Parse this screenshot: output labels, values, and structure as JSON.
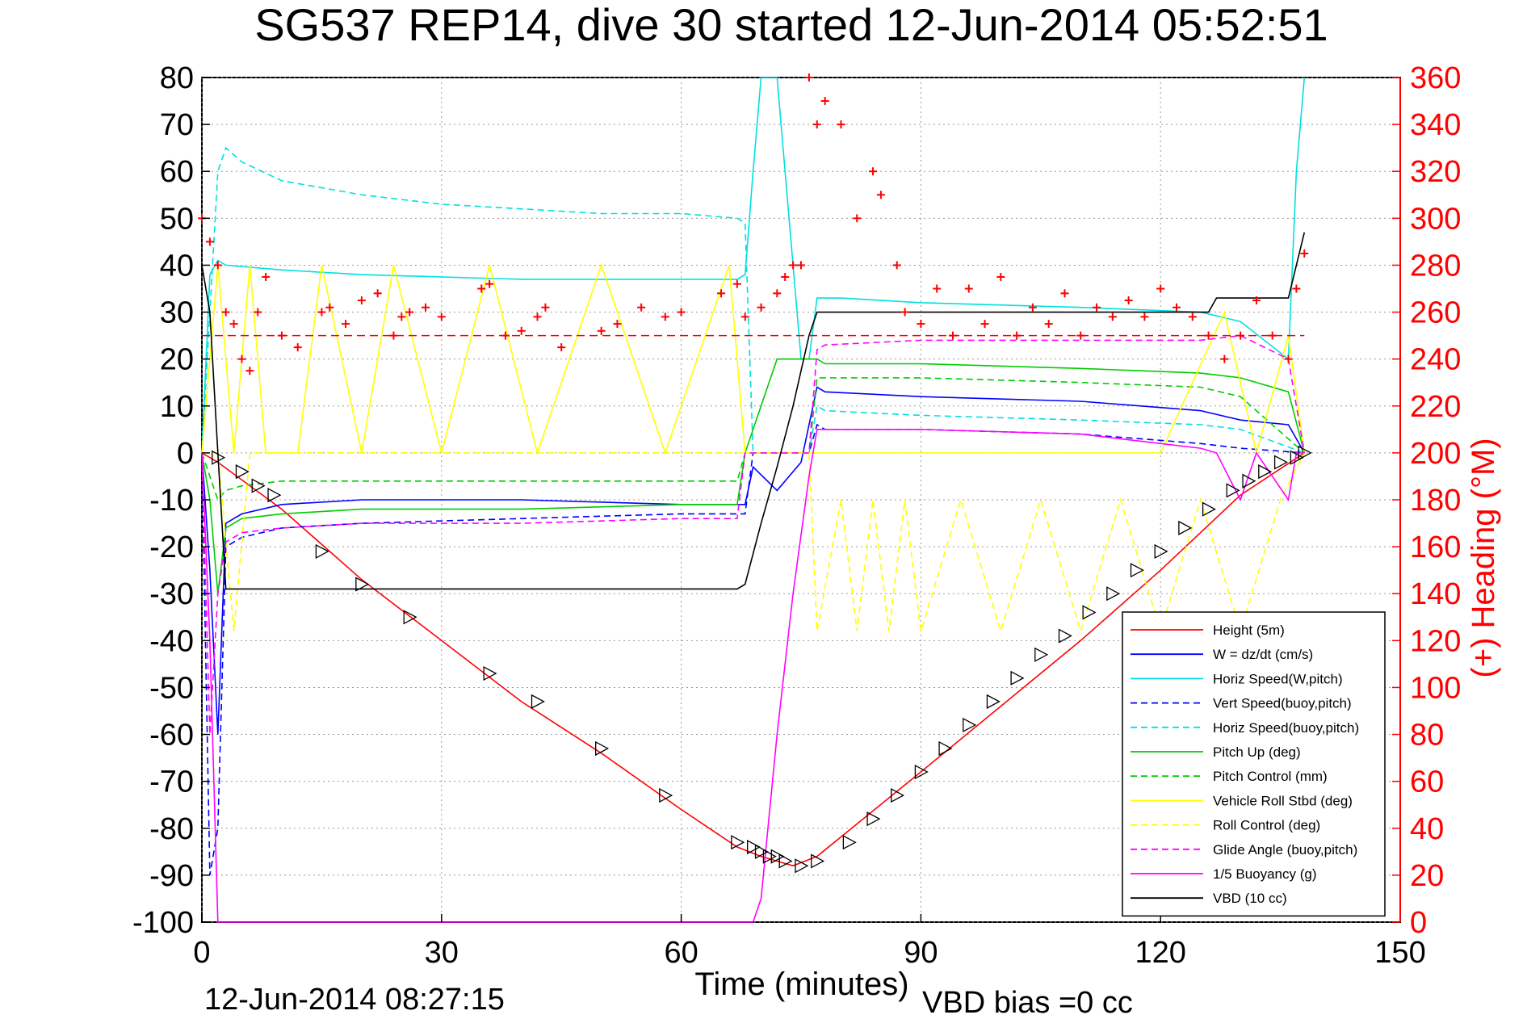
{
  "chart_data": {
    "type": "line",
    "title": "SG537 REP14, dive 30 started 12-Jun-2014 05:52:51",
    "xlabel": "Time (minutes)",
    "ylabel": "",
    "y2label": "(+) Heading (°M)",
    "footer_left": "12-Jun-2014 08:27:15",
    "footer_right": "VBD bias =0 cc",
    "xlim": [
      0,
      150
    ],
    "ylim": [
      -100,
      80
    ],
    "y2lim": [
      0,
      360
    ],
    "xticks": [
      "0",
      "30",
      "60",
      "90",
      "120",
      "150"
    ],
    "yticks": [
      "80",
      "70",
      "60",
      "50",
      "40",
      "30",
      "20",
      "10",
      "0",
      "-10",
      "-20",
      "-30",
      "-40",
      "-50",
      "-60",
      "-70",
      "-80",
      "-90",
      "-100"
    ],
    "y2ticks": [
      "360",
      "340",
      "320",
      "300",
      "280",
      "260",
      "240",
      "220",
      "200",
      "180",
      "160",
      "140",
      "120",
      "100",
      "80",
      "60",
      "40",
      "20",
      "0"
    ],
    "grid": true,
    "legend_position": "bottom-right",
    "colors": {
      "heading": "#ff0000",
      "right_axis": "#ff0000"
    },
    "heading_target": 250,
    "series": [
      {
        "name": "Height (5m)",
        "color": "#ff0000",
        "dash": "solid",
        "x": [
          0,
          2,
          10,
          20,
          30,
          40,
          50,
          60,
          67,
          70,
          74,
          77,
          90,
          100,
          110,
          120,
          130,
          138
        ],
        "y": [
          0,
          -2,
          -12,
          -27,
          -40,
          -53,
          -64,
          -76,
          -84,
          -86,
          -88,
          -86,
          -68,
          -54,
          -40,
          -25,
          -9,
          0
        ]
      },
      {
        "name": "W = dz/dt (cm/s)",
        "color": "#0000ff",
        "dash": "solid",
        "x": [
          0,
          1,
          2,
          3,
          5,
          10,
          20,
          40,
          60,
          68,
          69,
          72,
          75,
          77,
          78,
          90,
          110,
          125,
          130,
          136,
          138
        ],
        "y": [
          0,
          -25,
          -60,
          -15,
          -13,
          -11,
          -10,
          -10,
          -11,
          -11,
          -3,
          -8,
          -2,
          14,
          13,
          12,
          11,
          9,
          7,
          6,
          0
        ]
      },
      {
        "name": "Horiz Speed(W,pitch)",
        "color": "#00e0e0",
        "dash": "solid",
        "x": [
          0,
          1,
          2,
          3,
          10,
          20,
          40,
          60,
          67,
          68,
          69,
          70,
          72,
          73,
          75,
          76,
          77,
          80,
          90,
          110,
          125,
          130,
          136,
          137,
          138
        ],
        "y": [
          0,
          38,
          41,
          40,
          39,
          38,
          37,
          37,
          37,
          38,
          60,
          80,
          80,
          60,
          20,
          20,
          33,
          33,
          32,
          31,
          30,
          28,
          20,
          60,
          80
        ]
      },
      {
        "name": "Vert Speed(buoy,pitch)",
        "color": "#0000ff",
        "dash": "dash",
        "x": [
          0,
          1,
          2,
          3,
          5,
          10,
          20,
          40,
          60,
          68,
          69,
          76,
          77,
          78,
          90,
          110,
          125,
          130,
          138
        ],
        "y": [
          0,
          -90,
          -80,
          -20,
          -18,
          -16,
          -15,
          -14,
          -13,
          -13,
          0,
          0,
          6,
          5,
          5,
          4,
          2,
          1,
          0
        ]
      },
      {
        "name": "Horiz Speed(buoy,pitch)",
        "color": "#00e0e0",
        "dash": "dash",
        "x": [
          0,
          1,
          2,
          3,
          5,
          10,
          20,
          30,
          40,
          50,
          60,
          67,
          68,
          69,
          76,
          77,
          78,
          90,
          110,
          125,
          130,
          138
        ],
        "y": [
          0,
          30,
          60,
          65,
          62,
          58,
          55,
          53,
          52,
          51,
          51,
          50,
          49,
          0,
          0,
          10,
          9,
          8,
          7,
          6,
          5,
          0
        ]
      },
      {
        "name": "Pitch Up (deg)",
        "color": "#00cc00",
        "dash": "solid",
        "x": [
          0,
          1,
          2,
          3,
          5,
          10,
          20,
          40,
          60,
          67,
          68,
          70,
          72,
          76,
          77,
          78,
          90,
          110,
          125,
          130,
          136,
          138
        ],
        "y": [
          0,
          -10,
          -30,
          -16,
          -14,
          -13,
          -12,
          -12,
          -11,
          -11,
          0,
          10,
          20,
          20,
          20,
          19,
          19,
          18,
          17,
          16,
          13,
          0
        ]
      },
      {
        "name": "Pitch Control (mm)",
        "color": "#00cc00",
        "dash": "dash",
        "x": [
          0,
          1,
          2,
          3,
          5,
          10,
          20,
          40,
          60,
          67,
          68,
          69,
          76,
          77,
          78,
          90,
          110,
          125,
          130,
          138
        ],
        "y": [
          0,
          -5,
          -10,
          -8,
          -7,
          -6,
          -6,
          -6,
          -6,
          -6,
          0,
          0,
          0,
          16,
          16,
          16,
          15,
          14,
          12,
          0
        ]
      },
      {
        "name": "Vehicle Roll Stbd (deg)",
        "color": "#ffff00",
        "dash": "solid",
        "x": [
          0,
          2,
          4,
          6,
          8,
          12,
          15,
          20,
          24,
          30,
          36,
          42,
          50,
          58,
          66,
          68,
          72,
          76,
          80,
          86,
          90,
          100,
          110,
          120,
          128,
          132,
          136,
          138
        ],
        "y": [
          0,
          40,
          0,
          40,
          0,
          0,
          40,
          0,
          40,
          0,
          40,
          0,
          40,
          0,
          40,
          0,
          0,
          0,
          0,
          0,
          0,
          0,
          0,
          0,
          30,
          0,
          25,
          0
        ]
      },
      {
        "name": "Roll Control (deg)",
        "color": "#ffff00",
        "dash": "dash",
        "x": [
          0,
          2,
          4,
          6,
          10,
          20,
          30,
          40,
          50,
          60,
          67,
          68,
          76,
          77,
          80,
          82,
          84,
          86,
          88,
          90,
          95,
          100,
          105,
          110,
          115,
          120,
          125,
          130,
          135,
          138
        ],
        "y": [
          0,
          0,
          -38,
          0,
          0,
          0,
          0,
          0,
          0,
          0,
          0,
          0,
          0,
          -38,
          -10,
          -38,
          -10,
          -38,
          -10,
          -38,
          -10,
          -38,
          -10,
          -38,
          -10,
          -38,
          -10,
          -38,
          -10,
          0
        ]
      },
      {
        "name": "Glide Angle (buoy,pitch)",
        "color": "#ff00ff",
        "dash": "dash",
        "x": [
          0,
          1,
          2,
          3,
          5,
          10,
          20,
          40,
          60,
          67,
          68,
          69,
          76,
          77,
          78,
          90,
          110,
          125,
          130,
          136,
          138
        ],
        "y": [
          0,
          -60,
          -30,
          -19,
          -17,
          -16,
          -15,
          -15,
          -14,
          -14,
          0,
          0,
          0,
          22,
          23,
          24,
          24,
          24,
          25,
          20,
          0
        ]
      },
      {
        "name": "1/5 Buoyancy (g)",
        "color": "#ff00ff",
        "dash": "solid",
        "x": [
          0,
          1,
          2,
          3,
          69,
          70,
          72,
          74,
          76,
          77,
          80,
          90,
          110,
          125,
          127,
          130,
          132,
          134,
          136,
          137,
          138
        ],
        "y": [
          0,
          -40,
          -100,
          -100,
          -100,
          -95,
          -60,
          -30,
          -5,
          5,
          5,
          5,
          4,
          1,
          0,
          -10,
          0,
          -5,
          -10,
          0,
          0
        ]
      },
      {
        "name": "VBD (10 cc)",
        "color": "#000000",
        "dash": "solid",
        "x": [
          0,
          1,
          2,
          3,
          67,
          68,
          70,
          72,
          74,
          76,
          77,
          80,
          90,
          110,
          126,
          127,
          130,
          136,
          137,
          138
        ],
        "y": [
          40,
          30,
          0,
          -29,
          -29,
          -28,
          -15,
          -3,
          10,
          25,
          30,
          30,
          30,
          30,
          30,
          33,
          33,
          33,
          40,
          47
        ]
      }
    ],
    "heading": {
      "name": "(+) Heading (°M)",
      "color": "#ff0000",
      "x": [
        0,
        1,
        2,
        3,
        4,
        5,
        6,
        7,
        8,
        10,
        12,
        15,
        16,
        18,
        20,
        22,
        24,
        25,
        26,
        28,
        30,
        35,
        36,
        38,
        40,
        42,
        43,
        45,
        50,
        52,
        55,
        58,
        60,
        65,
        67,
        68,
        70,
        72,
        73,
        74,
        75,
        76,
        77,
        78,
        80,
        82,
        84,
        85,
        87,
        88,
        90,
        92,
        94,
        96,
        98,
        100,
        102,
        104,
        106,
        108,
        110,
        112,
        114,
        116,
        118,
        120,
        122,
        124,
        126,
        128,
        130,
        132,
        134,
        136,
        137,
        138
      ],
      "y": [
        300,
        290,
        280,
        260,
        255,
        240,
        235,
        260,
        275,
        250,
        245,
        260,
        262,
        255,
        265,
        268,
        250,
        258,
        260,
        262,
        258,
        270,
        272,
        250,
        252,
        258,
        262,
        245,
        252,
        255,
        262,
        258,
        260,
        268,
        272,
        258,
        262,
        268,
        275,
        280,
        280,
        360,
        340,
        350,
        340,
        300,
        320,
        310,
        280,
        260,
        255,
        270,
        250,
        270,
        255,
        275,
        250,
        262,
        255,
        268,
        250,
        262,
        258,
        265,
        258,
        270,
        262,
        258,
        250,
        240,
        250,
        265,
        250,
        240,
        270,
        285
      ]
    },
    "markers": {
      "name": "Height markers",
      "x": [
        2,
        5,
        7,
        9,
        15,
        20,
        26,
        36,
        42,
        50,
        58,
        67,
        69,
        70,
        71,
        72,
        73,
        75,
        77,
        81,
        84,
        87,
        90,
        93,
        96,
        99,
        102,
        105,
        108,
        111,
        114,
        117,
        120,
        123,
        126,
        129,
        131,
        133,
        135,
        137,
        138
      ],
      "y": [
        -1,
        -4,
        -7,
        -9,
        -21,
        -28,
        -35,
        -47,
        -53,
        -63,
        -73,
        -83,
        -84,
        -85,
        -86,
        -86,
        -87,
        -88,
        -87,
        -83,
        -78,
        -73,
        -68,
        -63,
        -58,
        -53,
        -48,
        -43,
        -39,
        -34,
        -30,
        -25,
        -21,
        -16,
        -12,
        -8,
        -6,
        -4,
        -2,
        -1,
        0
      ]
    }
  }
}
